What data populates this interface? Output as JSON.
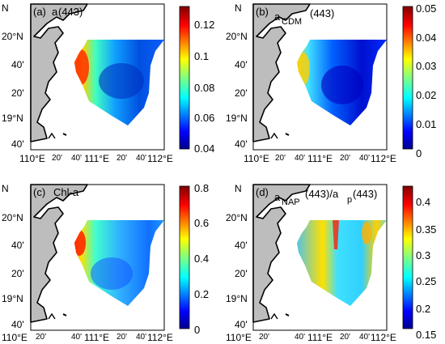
{
  "figure": {
    "panels": [
      {
        "letter": "(a)",
        "title_main": "a",
        "title_sub": "",
        "title_suffix": "(443)",
        "colorbar": {
          "ticks": [
            "0.12",
            "0.1",
            "0.08",
            "0.06",
            "0.04"
          ]
        }
      },
      {
        "letter": "(b)",
        "title_main": "a",
        "title_sub": "CDM",
        "title_suffix": "(443)",
        "colorbar": {
          "ticks": [
            "0.05",
            "0.04",
            "0.03",
            "0.02",
            "0.01",
            "0"
          ]
        }
      },
      {
        "letter": "(c)",
        "title_main": "Chl-a",
        "title_sub": "",
        "title_suffix": "",
        "colorbar": {
          "ticks": [
            "0.8",
            "0.6",
            "0.4",
            "0.2",
            "0"
          ]
        }
      },
      {
        "letter": "(d)",
        "title_main": "a",
        "title_sub": "NAP",
        "title_suffix": "(443)/a",
        "title_sub2": "p",
        "title_suffix2": "(443)",
        "colorbar": {
          "ticks": [
            "0.4",
            "0.35",
            "0.3",
            "0.25",
            "0.2",
            "0.15"
          ]
        }
      }
    ],
    "lat_labels": [
      "20'",
      "20°N",
      "40'",
      "20'",
      "19°N",
      "40'"
    ],
    "lat_partial_top": "N",
    "lon_labels": [
      "110°E",
      "20'",
      "40'",
      "111°E",
      "20'",
      "40'",
      "112°E"
    ],
    "colors": {
      "land": "#bdbdbd",
      "colormap": [
        "#00008f",
        "#0000ff",
        "#0080ff",
        "#00ffff",
        "#80ff80",
        "#ffff00",
        "#ff8000",
        "#ff0000",
        "#800000"
      ]
    }
  }
}
